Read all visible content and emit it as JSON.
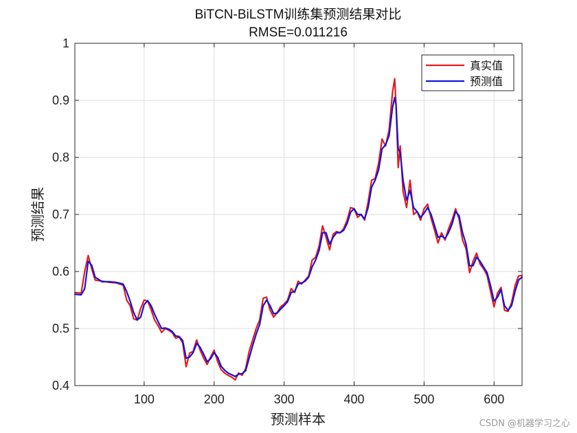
{
  "chart_data": {
    "type": "line",
    "title": "BiTCN-BiLSTM训练集预测结果对比",
    "subtitle": "RMSE=0.011216",
    "xlabel": "预测样本",
    "ylabel": "预测结果",
    "xlim": [
      1,
      640
    ],
    "ylim": [
      0.4,
      1.0
    ],
    "xticks": [
      100,
      200,
      300,
      400,
      500,
      600
    ],
    "yticks": [
      0.4,
      0.5,
      0.6,
      0.7,
      0.8,
      0.9,
      1.0
    ],
    "ytick_labels": [
      "0.4",
      "0.5",
      "0.6",
      "0.7",
      "0.8",
      "0.9",
      "1"
    ],
    "grid": true,
    "legend_position": "top-right",
    "x": [
      1,
      10,
      15,
      20,
      25,
      30,
      40,
      50,
      60,
      70,
      75,
      80,
      85,
      90,
      95,
      100,
      105,
      110,
      115,
      120,
      125,
      130,
      135,
      140,
      145,
      150,
      155,
      160,
      165,
      170,
      175,
      180,
      185,
      190,
      195,
      200,
      205,
      210,
      215,
      220,
      225,
      230,
      235,
      240,
      245,
      250,
      255,
      260,
      265,
      270,
      275,
      280,
      285,
      290,
      295,
      300,
      305,
      310,
      315,
      320,
      325,
      330,
      335,
      340,
      345,
      350,
      355,
      360,
      365,
      370,
      375,
      380,
      385,
      390,
      395,
      400,
      405,
      410,
      415,
      420,
      425,
      430,
      435,
      440,
      445,
      450,
      455,
      458,
      460,
      463,
      466,
      470,
      475,
      480,
      485,
      490,
      495,
      500,
      505,
      510,
      515,
      520,
      525,
      530,
      535,
      540,
      545,
      550,
      555,
      560,
      565,
      570,
      575,
      580,
      585,
      590,
      595,
      600,
      605,
      610,
      615,
      620,
      625,
      630,
      635,
      640
    ],
    "series": [
      {
        "name": "真实值",
        "color": "#e41a1c",
        "values": [
          0.563,
          0.562,
          0.6,
          0.628,
          0.605,
          0.585,
          0.583,
          0.581,
          0.58,
          0.576,
          0.55,
          0.54,
          0.517,
          0.515,
          0.535,
          0.55,
          0.548,
          0.533,
          0.515,
          0.505,
          0.493,
          0.5,
          0.497,
          0.493,
          0.483,
          0.485,
          0.475,
          0.433,
          0.457,
          0.46,
          0.48,
          0.462,
          0.448,
          0.437,
          0.45,
          0.462,
          0.442,
          0.428,
          0.422,
          0.418,
          0.415,
          0.41,
          0.422,
          0.418,
          0.43,
          0.46,
          0.48,
          0.5,
          0.515,
          0.553,
          0.555,
          0.532,
          0.52,
          0.528,
          0.538,
          0.543,
          0.55,
          0.57,
          0.563,
          0.583,
          0.578,
          0.585,
          0.592,
          0.62,
          0.625,
          0.645,
          0.68,
          0.66,
          0.638,
          0.665,
          0.67,
          0.668,
          0.675,
          0.69,
          0.712,
          0.71,
          0.695,
          0.7,
          0.69,
          0.722,
          0.76,
          0.763,
          0.79,
          0.832,
          0.82,
          0.848,
          0.915,
          0.938,
          0.89,
          0.782,
          0.82,
          0.74,
          0.712,
          0.76,
          0.7,
          0.705,
          0.69,
          0.71,
          0.718,
          0.693,
          0.672,
          0.65,
          0.668,
          0.655,
          0.675,
          0.69,
          0.71,
          0.692,
          0.655,
          0.64,
          0.598,
          0.618,
          0.632,
          0.613,
          0.605,
          0.593,
          0.565,
          0.538,
          0.562,
          0.572,
          0.532,
          0.53,
          0.545,
          0.575,
          0.592,
          0.593
        ]
      },
      {
        "name": "预测值",
        "color": "#1414d6",
        "values": [
          0.56,
          0.559,
          0.57,
          0.618,
          0.611,
          0.59,
          0.582,
          0.582,
          0.581,
          0.578,
          0.565,
          0.548,
          0.528,
          0.515,
          0.52,
          0.542,
          0.549,
          0.54,
          0.525,
          0.512,
          0.5,
          0.501,
          0.499,
          0.495,
          0.487,
          0.486,
          0.479,
          0.448,
          0.45,
          0.458,
          0.474,
          0.467,
          0.455,
          0.442,
          0.447,
          0.458,
          0.45,
          0.434,
          0.427,
          0.422,
          0.419,
          0.416,
          0.42,
          0.421,
          0.426,
          0.448,
          0.47,
          0.49,
          0.507,
          0.54,
          0.55,
          0.54,
          0.526,
          0.527,
          0.534,
          0.54,
          0.547,
          0.563,
          0.565,
          0.578,
          0.58,
          0.583,
          0.59,
          0.608,
          0.62,
          0.637,
          0.668,
          0.668,
          0.648,
          0.66,
          0.668,
          0.668,
          0.672,
          0.684,
          0.704,
          0.71,
          0.7,
          0.7,
          0.692,
          0.712,
          0.748,
          0.76,
          0.778,
          0.815,
          0.822,
          0.838,
          0.888,
          0.905,
          0.892,
          0.815,
          0.808,
          0.76,
          0.725,
          0.742,
          0.712,
          0.705,
          0.695,
          0.702,
          0.712,
          0.7,
          0.68,
          0.66,
          0.662,
          0.658,
          0.668,
          0.683,
          0.705,
          0.698,
          0.668,
          0.648,
          0.61,
          0.61,
          0.625,
          0.618,
          0.608,
          0.598,
          0.575,
          0.548,
          0.555,
          0.568,
          0.54,
          0.532,
          0.54,
          0.565,
          0.585,
          0.59
        ]
      }
    ]
  },
  "watermark": "CSDN @机器学习之心"
}
